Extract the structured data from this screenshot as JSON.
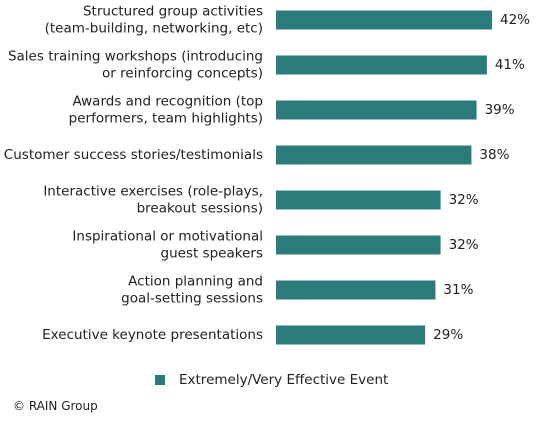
{
  "chart_data": {
    "type": "bar",
    "orientation": "horizontal",
    "categories": [
      [
        "Structured group activities",
        "(team-building, networking, etc)"
      ],
      [
        "Sales training workshops (introducing",
        "or reinforcing concepts)"
      ],
      [
        "Awards and recognition (top",
        "performers, team highlights)"
      ],
      [
        "Customer success stories/testimonials"
      ],
      [
        "Interactive exercises (role-plays,",
        "breakout sessions)"
      ],
      [
        "Inspirational or motivational",
        "guest speakers"
      ],
      [
        "Action planning and",
        "goal-setting sessions"
      ],
      [
        "Executive keynote presentations"
      ]
    ],
    "values": [
      42,
      41,
      39,
      38,
      32,
      32,
      31,
      29
    ],
    "value_labels": [
      "42%",
      "41%",
      "39%",
      "38%",
      "32%",
      "32%",
      "31%",
      "29%"
    ],
    "series": [
      {
        "name": "Extremely/Very Effective Event",
        "color": "#2b7b7b"
      }
    ],
    "xlim": [
      0,
      50
    ],
    "grid": false,
    "legend_position": "bottom"
  },
  "credit": "© RAIN Group"
}
